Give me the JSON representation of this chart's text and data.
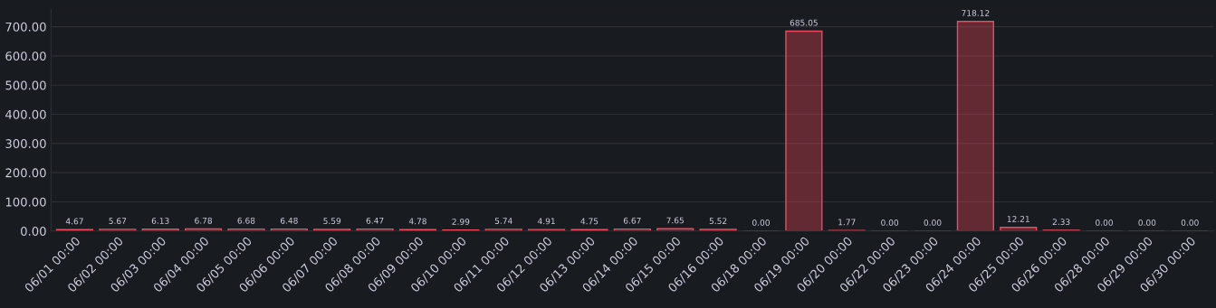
{
  "chart_data": {
    "type": "bar",
    "categories": [
      "06/01 00:00",
      "06/02 00:00",
      "06/03 00:00",
      "06/04 00:00",
      "06/05 00:00",
      "06/06 00:00",
      "06/07 00:00",
      "06/08 00:00",
      "06/09 00:00",
      "06/10 00:00",
      "06/11 00:00",
      "06/12 00:00",
      "06/13 00:00",
      "06/14 00:00",
      "06/15 00:00",
      "06/16 00:00",
      "06/18 00:00",
      "06/19 00:00",
      "06/20 00:00",
      "06/22 00:00",
      "06/23 00:00",
      "06/24 00:00",
      "06/25 00:00",
      "06/26 00:00",
      "06/28 00:00",
      "06/29 00:00",
      "06/30 00:00"
    ],
    "values": [
      4.67,
      5.67,
      6.13,
      6.78,
      6.68,
      6.48,
      5.59,
      6.47,
      4.78,
      2.99,
      5.74,
      4.91,
      4.75,
      6.67,
      7.65,
      5.52,
      0,
      685.05,
      1.77,
      0,
      0,
      718.12,
      12.21,
      2.33,
      0,
      0,
      0
    ],
    "value_labels": [
      "4.67",
      "5.67",
      "6.13",
      "6.78",
      "6.68",
      "6.48",
      "5.59",
      "6.47",
      "4.78",
      "2.99",
      "5.74",
      "4.91",
      "4.75",
      "6.67",
      "7.65",
      "5.52",
      "0.00",
      "685.05",
      "1.77",
      "0.00",
      "0.00",
      "718.12",
      "12.21",
      "2.33",
      "0.00",
      "0.00",
      "0.00"
    ],
    "color": "#f2495c",
    "ylim": [
      0,
      760
    ],
    "yticks": [
      {
        "value": 0,
        "label": "0.00"
      },
      {
        "value": 100,
        "label": "100.00"
      },
      {
        "value": 200,
        "label": "200.00"
      },
      {
        "value": 300,
        "label": "300.00"
      },
      {
        "value": 400,
        "label": "400.00"
      },
      {
        "value": 500,
        "label": "500.00"
      },
      {
        "value": 600,
        "label": "600.00"
      },
      {
        "value": 700,
        "label": "700.00"
      }
    ],
    "grid": "y"
  }
}
